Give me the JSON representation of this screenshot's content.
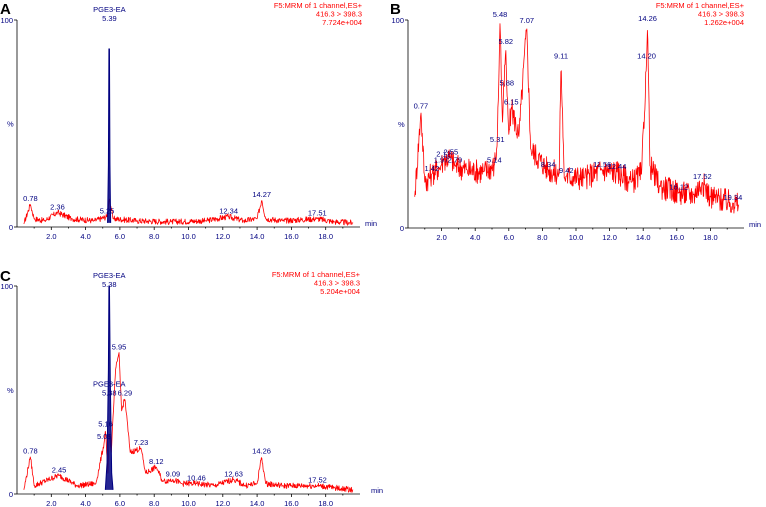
{
  "chart_data": [
    {
      "panel": "A",
      "type": "line",
      "header": [
        "F5:MRM of 1 channel,ES+",
        "416.3 > 398.3",
        "7.724e+004"
      ],
      "xlabel": "min",
      "ylabel": "%",
      "ylim": [
        0,
        100
      ],
      "y_ticks": [
        "0",
        "100"
      ],
      "xlim": [
        0,
        20
      ],
      "x_ticks": [
        "2.0",
        "4.0",
        "6.0",
        "8.0",
        "10.0",
        "12.0",
        "14.0",
        "16.0",
        "18.0"
      ],
      "baseline": 2,
      "series": [
        {
          "color": "#ff0000",
          "mode": "noisy",
          "points": [
            [
              0.4,
              1.5
            ],
            [
              0.78,
              11
            ],
            [
              1.0,
              4
            ],
            [
              1.6,
              3
            ],
            [
              2.36,
              7
            ],
            [
              3.2,
              4
            ],
            [
              4.5,
              3
            ],
            [
              5.25,
              5
            ],
            [
              5.39,
              14
            ],
            [
              5.6,
              4
            ],
            [
              7,
              3
            ],
            [
              9,
              2.5
            ],
            [
              11,
              3
            ],
            [
              12.34,
              5
            ],
            [
              13.2,
              3
            ],
            [
              14.0,
              4
            ],
            [
              14.27,
              13
            ],
            [
              14.5,
              4
            ],
            [
              15.5,
              3
            ],
            [
              17.51,
              4
            ],
            [
              18.5,
              2.5
            ],
            [
              19.6,
              2
            ]
          ]
        },
        {
          "color": "#000080",
          "mode": "spike",
          "points": [
            [
              5.28,
              2
            ],
            [
              5.33,
              30
            ],
            [
              5.36,
              86
            ],
            [
              5.39,
              86
            ],
            [
              5.42,
              30
            ],
            [
              5.46,
              2
            ]
          ]
        }
      ],
      "peak_labels": [
        {
          "text": "PGE3-EA",
          "x": 5.39,
          "y": 100,
          "line2": "5.39"
        },
        {
          "text": "0.78",
          "x": 0.78,
          "y": 11
        },
        {
          "text": "2.36",
          "x": 2.36,
          "y": 7
        },
        {
          "text": "5.25",
          "x": 5.25,
          "y": 5
        },
        {
          "text": "12.34",
          "x": 12.34,
          "y": 5
        },
        {
          "text": "14.27",
          "x": 14.27,
          "y": 13
        },
        {
          "text": "17.51",
          "x": 17.51,
          "y": 4
        }
      ]
    },
    {
      "panel": "B",
      "type": "line",
      "header": [
        "F5:MRM of 1 channel,ES+",
        "416.3 > 398.3",
        "1.262e+004"
      ],
      "xlabel": "min",
      "ylabel": "%",
      "ylim": [
        0,
        100
      ],
      "y_ticks": [
        "0",
        "100"
      ],
      "xlim": [
        0,
        20
      ],
      "x_ticks": [
        "2.0",
        "4.0",
        "6.0",
        "8.0",
        "10.0",
        "12.0",
        "14.0",
        "16.0",
        "18.0"
      ],
      "baseline": 15,
      "series": [
        {
          "color": "#ff0000",
          "mode": "noisy",
          "points": [
            [
              0.4,
              15
            ],
            [
              0.77,
              56
            ],
            [
              1.0,
              22
            ],
            [
              1.42,
              26
            ],
            [
              1.97,
              30
            ],
            [
              2.12,
              33
            ],
            [
              2.55,
              34
            ],
            [
              2.79,
              30
            ],
            [
              3.5,
              28
            ],
            [
              4.5,
              27
            ],
            [
              5.14,
              30
            ],
            [
              5.31,
              40
            ],
            [
              5.48,
              100
            ],
            [
              5.62,
              50
            ],
            [
              5.82,
              87
            ],
            [
              5.88,
              67
            ],
            [
              6.0,
              45
            ],
            [
              6.15,
              58
            ],
            [
              6.6,
              44
            ],
            [
              7.07,
              97
            ],
            [
              7.3,
              38
            ],
            [
              8.34,
              28
            ],
            [
              9.0,
              26
            ],
            [
              9.11,
              80
            ],
            [
              9.3,
              24
            ],
            [
              9.42,
              25
            ],
            [
              10.5,
              24
            ],
            [
              11.56,
              28
            ],
            [
              12.44,
              27
            ],
            [
              13.3,
              22
            ],
            [
              13.9,
              26
            ],
            [
              14.2,
              80
            ],
            [
              14.26,
              98
            ],
            [
              14.4,
              30
            ],
            [
              15,
              20
            ],
            [
              16.12,
              17
            ],
            [
              17.0,
              16
            ],
            [
              17.52,
              22
            ],
            [
              18,
              15
            ],
            [
              19.34,
              12
            ],
            [
              19.7,
              11
            ]
          ]
        }
      ],
      "peak_labels": [
        {
          "text": "0.77",
          "x": 0.77,
          "y": 56
        },
        {
          "text": "1.42",
          "x": 1.42,
          "y": 26
        },
        {
          "text": "1.97",
          "x": 1.97,
          "y": 30
        },
        {
          "text": "2.12",
          "x": 2.12,
          "y": 33
        },
        {
          "text": "2.55",
          "x": 2.55,
          "y": 34
        },
        {
          "text": "2.79",
          "x": 2.79,
          "y": 30
        },
        {
          "text": "5.14",
          "x": 5.14,
          "y": 30
        },
        {
          "text": "5.31",
          "x": 5.31,
          "y": 40
        },
        {
          "text": "5.48",
          "x": 5.48,
          "y": 100
        },
        {
          "text": "5.82",
          "x": 5.82,
          "y": 87
        },
        {
          "text": "5.88",
          "x": 5.88,
          "y": 67
        },
        {
          "text": "6.15",
          "x": 6.15,
          "y": 58
        },
        {
          "text": "7.07",
          "x": 7.07,
          "y": 97
        },
        {
          "text": "8.34",
          "x": 8.34,
          "y": 28
        },
        {
          "text": "9.11",
          "x": 9.11,
          "y": 80
        },
        {
          "text": "9.42",
          "x": 9.42,
          "y": 25
        },
        {
          "text": "11.56",
          "x": 11.56,
          "y": 28
        },
        {
          "text": "12.44",
          "x": 12.44,
          "y": 27
        },
        {
          "text": "14.20",
          "x": 14.2,
          "y": 80
        },
        {
          "text": "14.26",
          "x": 14.26,
          "y": 98
        },
        {
          "text": "16.12",
          "x": 16.12,
          "y": 17
        },
        {
          "text": "17.52",
          "x": 17.52,
          "y": 22
        },
        {
          "text": "19.34",
          "x": 19.34,
          "y": 12
        }
      ]
    },
    {
      "panel": "C",
      "type": "line",
      "header": [
        "F5:MRM of 1 channel,ES+",
        "416.3 > 398.3",
        "5.204e+004"
      ],
      "xlabel": "min",
      "ylabel": "%",
      "ylim": [
        0,
        100
      ],
      "y_ticks": [
        "0",
        "100"
      ],
      "xlim": [
        0,
        20
      ],
      "x_ticks": [
        "2.0",
        "4.0",
        "6.0",
        "8.0",
        "10.0",
        "12.0",
        "14.0",
        "16.0",
        "18.0"
      ],
      "baseline": 2,
      "series": [
        {
          "color": "#ff0000",
          "mode": "noisy",
          "points": [
            [
              0.4,
              2
            ],
            [
              0.78,
              18
            ],
            [
              1.0,
              4
            ],
            [
              2.45,
              9
            ],
            [
              3.5,
              4
            ],
            [
              4.6,
              5
            ],
            [
              5.09,
              25
            ],
            [
              5.16,
              31
            ],
            [
              5.3,
              10
            ],
            [
              5.38,
              30
            ],
            [
              5.5,
              20
            ],
            [
              5.75,
              60
            ],
            [
              5.95,
              68
            ],
            [
              6.1,
              40
            ],
            [
              6.29,
              46
            ],
            [
              6.6,
              20
            ],
            [
              7.23,
              22
            ],
            [
              7.5,
              10
            ],
            [
              8.12,
              13
            ],
            [
              8.5,
              6
            ],
            [
              9.09,
              7
            ],
            [
              9.6,
              5
            ],
            [
              10.46,
              5
            ],
            [
              11.5,
              4
            ],
            [
              12.63,
              7
            ],
            [
              13.3,
              4
            ],
            [
              14.0,
              5
            ],
            [
              14.26,
              18
            ],
            [
              14.5,
              5
            ],
            [
              15.5,
              4
            ],
            [
              17.52,
              4
            ],
            [
              18.5,
              3
            ],
            [
              19.6,
              2
            ]
          ]
        },
        {
          "color": "#000080",
          "mode": "spike",
          "points": [
            [
              5.15,
              2
            ],
            [
              5.25,
              15
            ],
            [
              5.33,
              60
            ],
            [
              5.36,
              100
            ],
            [
              5.39,
              100
            ],
            [
              5.44,
              55
            ],
            [
              5.52,
              10
            ],
            [
              5.6,
              2
            ]
          ]
        }
      ],
      "peak_labels": [
        {
          "text": "PGE3-EA",
          "x": 5.38,
          "y": 100,
          "line2": "5.38"
        },
        {
          "text": "PGE3-EA",
          "x": 5.38,
          "y": 45,
          "line2": "5.38"
        },
        {
          "text": "0.78",
          "x": 0.78,
          "y": 18
        },
        {
          "text": "2.45",
          "x": 2.45,
          "y": 9
        },
        {
          "text": "5.09",
          "x": 5.09,
          "y": 25
        },
        {
          "text": "5.16",
          "x": 5.16,
          "y": 31
        },
        {
          "text": "5.95",
          "x": 5.95,
          "y": 68
        },
        {
          "text": "6.29",
          "x": 6.29,
          "y": 46
        },
        {
          "text": "7.23",
          "x": 7.23,
          "y": 22
        },
        {
          "text": "8.12",
          "x": 8.12,
          "y": 13
        },
        {
          "text": "9.09",
          "x": 9.09,
          "y": 7
        },
        {
          "text": "10.46",
          "x": 10.46,
          "y": 5
        },
        {
          "text": "12.63",
          "x": 12.63,
          "y": 7
        },
        {
          "text": "14.26",
          "x": 14.26,
          "y": 18
        },
        {
          "text": "17.52",
          "x": 17.52,
          "y": 4
        }
      ]
    }
  ]
}
